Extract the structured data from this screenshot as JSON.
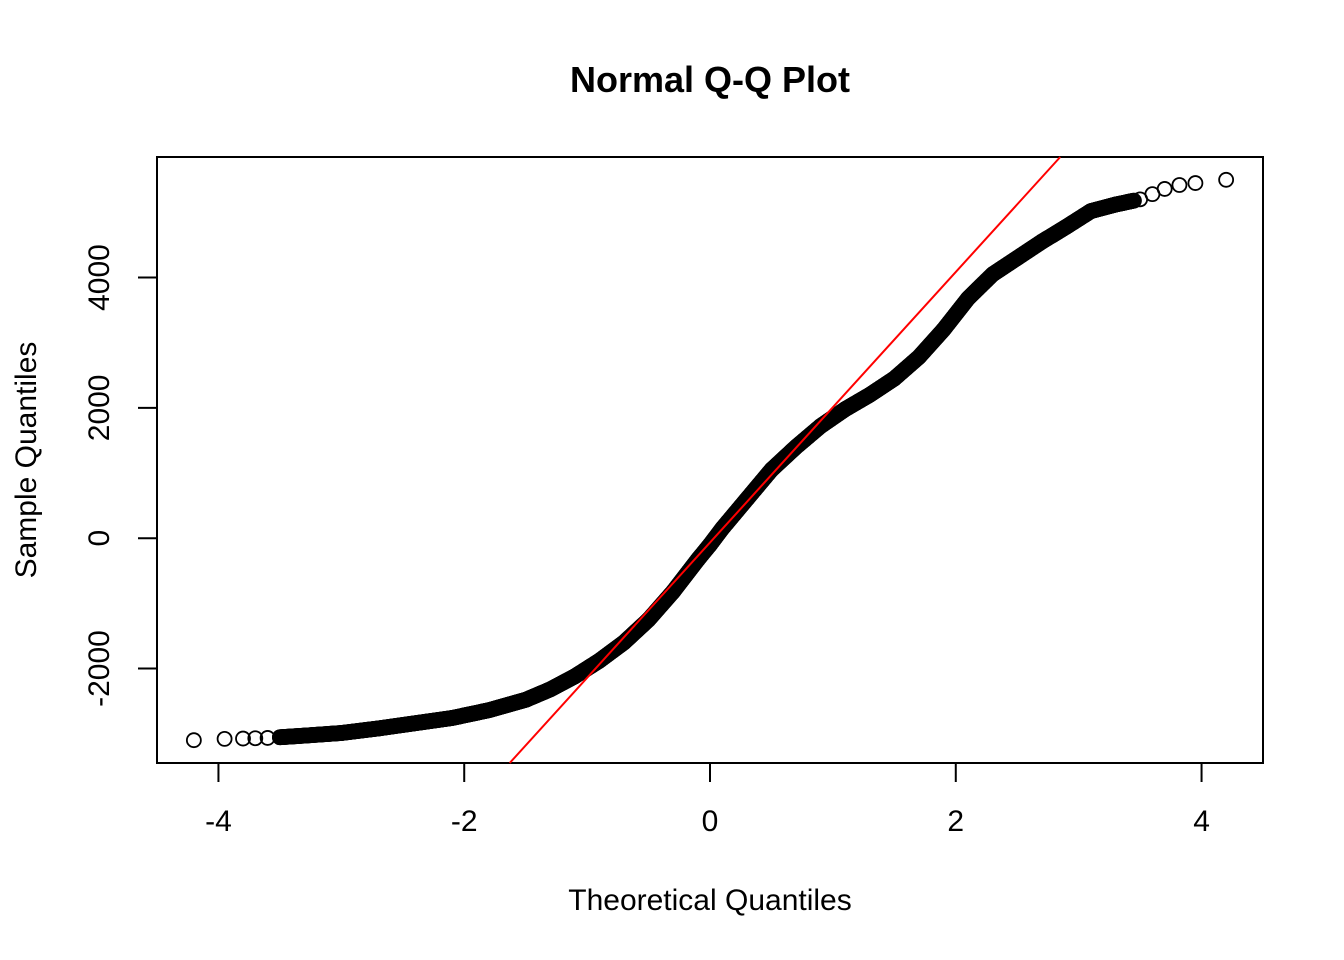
{
  "chart_data": {
    "type": "scatter",
    "title": "Normal Q-Q Plot",
    "xlabel": "Theoretical Quantiles",
    "ylabel": "Sample Quantiles",
    "xlim": [
      -4.5,
      4.5
    ],
    "ylim": [
      -3450,
      5850
    ],
    "x_ticks": [
      -4,
      -2,
      0,
      2,
      4
    ],
    "x_tick_labels": [
      "-4",
      "-2",
      "0",
      "2",
      "4"
    ],
    "y_ticks": [
      -2000,
      0,
      2000,
      4000
    ],
    "y_tick_labels": [
      "-2000",
      "0",
      "2000",
      "4000"
    ],
    "grid": false,
    "legend": "none",
    "point_color": "#000000",
    "reference_line": {
      "color": "#ff0000",
      "points": [
        [
          -1.63,
          -3450
        ],
        [
          2.85,
          5850
        ]
      ]
    },
    "series": [
      {
        "marker": "open-circle",
        "points": [
          [
            -4.2,
            -3100
          ],
          [
            -3.95,
            -3080
          ],
          [
            -3.8,
            -3075
          ],
          [
            -3.7,
            -3070
          ],
          [
            -3.6,
            -3065
          ],
          [
            -3.5,
            -3055
          ],
          [
            -3.3,
            -3030
          ],
          [
            -3.0,
            -2990
          ],
          [
            -2.7,
            -2920
          ],
          [
            -2.4,
            -2840
          ],
          [
            -2.1,
            -2760
          ],
          [
            -1.8,
            -2640
          ],
          [
            -1.5,
            -2480
          ],
          [
            -1.3,
            -2320
          ],
          [
            -1.1,
            -2120
          ],
          [
            -0.9,
            -1880
          ],
          [
            -0.7,
            -1600
          ],
          [
            -0.5,
            -1250
          ],
          [
            -0.3,
            -820
          ],
          [
            -0.1,
            -330
          ],
          [
            0.0,
            -100
          ],
          [
            0.1,
            150
          ],
          [
            0.3,
            600
          ],
          [
            0.5,
            1050
          ],
          [
            0.7,
            1400
          ],
          [
            0.9,
            1720
          ],
          [
            1.1,
            1980
          ],
          [
            1.3,
            2200
          ],
          [
            1.5,
            2450
          ],
          [
            1.7,
            2780
          ],
          [
            1.9,
            3200
          ],
          [
            2.1,
            3680
          ],
          [
            2.3,
            4050
          ],
          [
            2.5,
            4300
          ],
          [
            2.7,
            4550
          ],
          [
            2.9,
            4780
          ],
          [
            3.1,
            5020
          ],
          [
            3.3,
            5120
          ],
          [
            3.5,
            5200
          ],
          [
            3.6,
            5280
          ],
          [
            3.7,
            5360
          ],
          [
            3.82,
            5420
          ],
          [
            3.95,
            5450
          ],
          [
            4.2,
            5500
          ]
        ]
      }
    ]
  }
}
